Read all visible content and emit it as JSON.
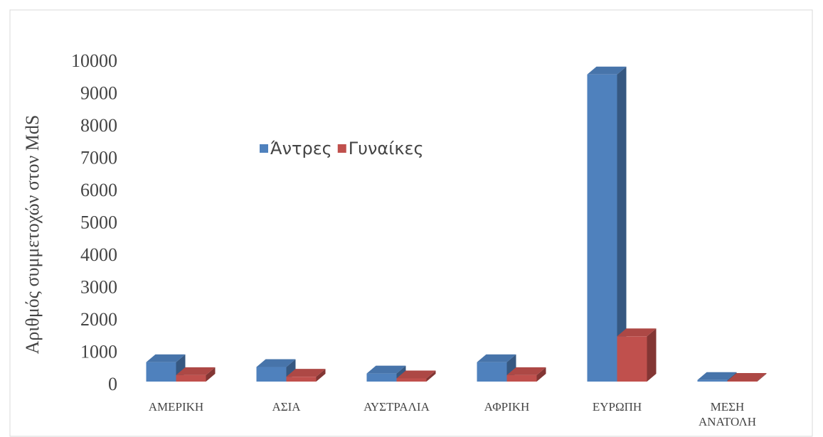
{
  "chart_data": {
    "type": "bar3d",
    "y_label": "Αριθμός συμμετοχών στον MdS",
    "categories": [
      "ΑΜΕΡΙΚΗ",
      "ΑΣΙΑ",
      "ΑΥΣΤΡΑΛΙΑ",
      "ΑΦΡΙΚΗ",
      "ΕΥΡΩΠΗ",
      "ΜΕΣΗ ΑΝΑΤΟΛΗ"
    ],
    "series": [
      {
        "name": "Άντρες",
        "color": "#4f81bd",
        "values": [
          600,
          450,
          250,
          600,
          9500,
          50
        ]
      },
      {
        "name": "Γυναίκες",
        "color": "#c0504d",
        "values": [
          200,
          150,
          100,
          200,
          1400,
          20
        ]
      }
    ],
    "ylim": [
      0,
      10000
    ],
    "yticks": [
      0,
      1000,
      2000,
      3000,
      4000,
      5000,
      6000,
      7000,
      8000,
      9000,
      10000
    ],
    "legend": "upper left"
  }
}
